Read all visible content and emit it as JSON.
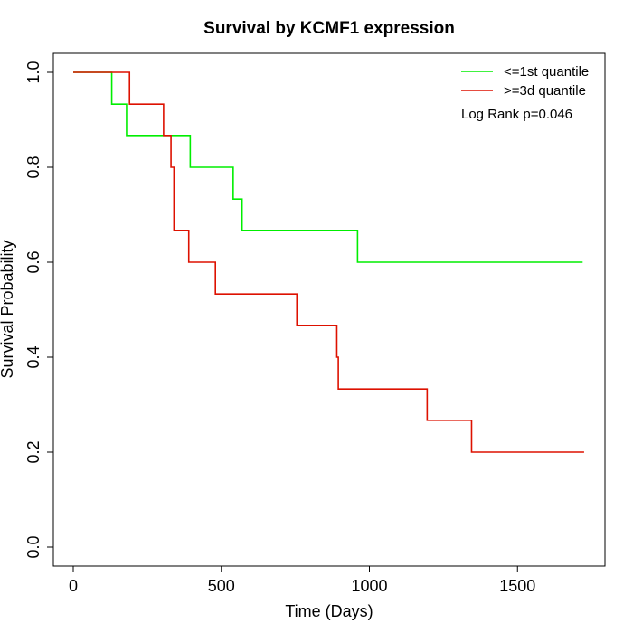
{
  "chart_data": {
    "type": "line",
    "title": "Survival by KCMF1 expression",
    "xlabel": "Time (Days)",
    "ylabel": "Survival Probability",
    "xlim": [
      0,
      1750
    ],
    "ylim": [
      0,
      1.0
    ],
    "x_ticks": [
      0,
      500,
      1000,
      1500
    ],
    "y_ticks": [
      0.0,
      0.2,
      0.4,
      0.6,
      0.8,
      1.0
    ],
    "x_tick_labels": [
      "0",
      "500",
      "1000",
      "1500"
    ],
    "y_tick_labels": [
      "0.0",
      "0.2",
      "0.4",
      "0.6",
      "0.8",
      "1.0"
    ],
    "grid": false,
    "legend_position": "top-right",
    "annotation": "Log Rank p=0.046",
    "series": [
      {
        "name": "<=1st quantile",
        "color": "#00ee00",
        "steps": [
          [
            0,
            1.0
          ],
          [
            130,
            0.933
          ],
          [
            180,
            0.867
          ],
          [
            395,
            0.8
          ],
          [
            540,
            0.733
          ],
          [
            570,
            0.667
          ],
          [
            960,
            0.6
          ],
          [
            1720,
            0.6
          ]
        ]
      },
      {
        "name": ">=3d quantile",
        "color": "#dd1100",
        "steps": [
          [
            0,
            1.0
          ],
          [
            190,
            0.933
          ],
          [
            305,
            0.867
          ],
          [
            330,
            0.8
          ],
          [
            340,
            0.667
          ],
          [
            390,
            0.6
          ],
          [
            480,
            0.533
          ],
          [
            755,
            0.467
          ],
          [
            890,
            0.4
          ],
          [
            895,
            0.333
          ],
          [
            1195,
            0.267
          ],
          [
            1345,
            0.2
          ],
          [
            1725,
            0.2
          ]
        ]
      }
    ]
  }
}
